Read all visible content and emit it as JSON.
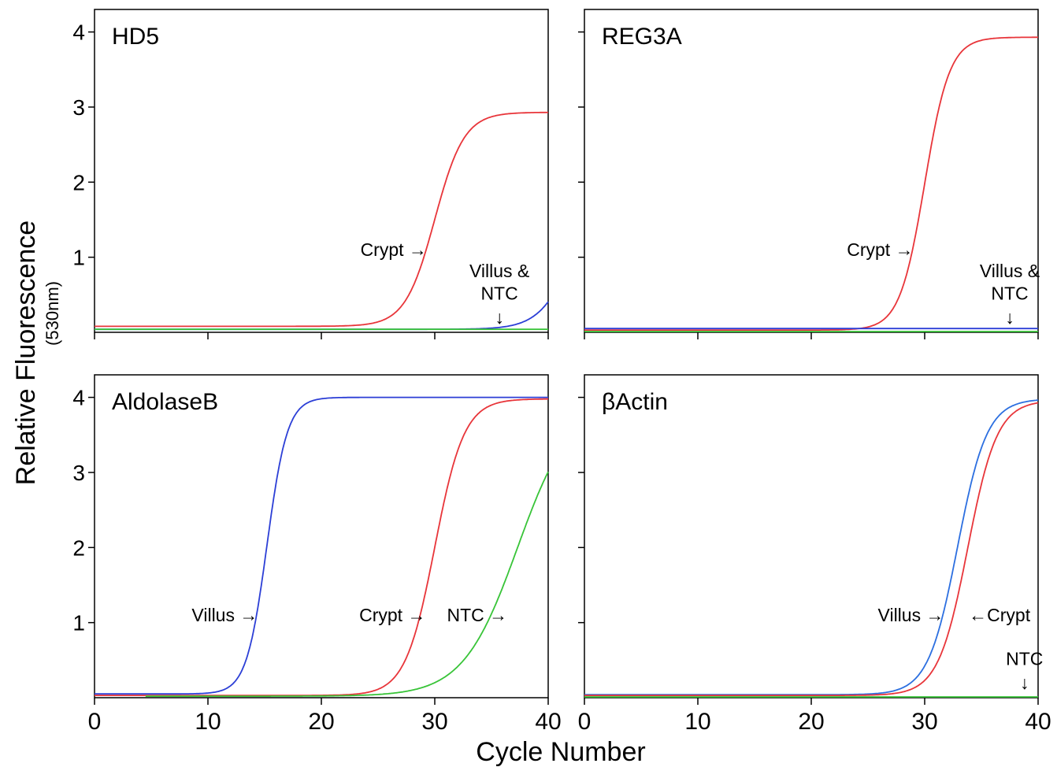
{
  "figure": {
    "ylabel": "Relative Fluorescence",
    "ylabel_sub": "(530nm)",
    "xlabel": "Cycle Number"
  },
  "chart_data": [
    {
      "type": "line",
      "title": "HD5",
      "xlim": [
        0,
        40
      ],
      "ylim": [
        0,
        4.3
      ],
      "yticks": [
        1,
        2,
        3,
        4
      ],
      "xticks": [
        0,
        10,
        20,
        30,
        40
      ],
      "show_ytick_labels": true,
      "show_xtick_labels": false,
      "series": [
        {
          "name": "Crypt",
          "color": "#e8353a",
          "baseline": 0.08,
          "plateau": 2.93,
          "midpoint": 30,
          "steepness": 1.3,
          "start": 0
        },
        {
          "name": "Villus",
          "color": "#2c3fd6",
          "baseline": 0.04,
          "plateau": 2.0,
          "midpoint": 42.2,
          "steepness": 1.5,
          "start": 0
        },
        {
          "name": "NTC",
          "color": "#38c438",
          "baseline": 0.04,
          "plateau": 0.04,
          "midpoint": 99,
          "steepness": 1,
          "start": 0
        }
      ],
      "annotations": [
        {
          "text": "Crypt",
          "arrow": "→",
          "x": 29.3,
          "y": 1.1,
          "anchor": "end"
        },
        {
          "text": "Villus &",
          "x": 35.7,
          "y": 0.82,
          "anchor": "middle"
        },
        {
          "text": "NTC",
          "x": 35.7,
          "y": 0.52,
          "anchor": "middle"
        },
        {
          "text": "↓",
          "x": 35.7,
          "y": 0.2,
          "anchor": "middle"
        }
      ]
    },
    {
      "type": "line",
      "title": "REG3A",
      "xlim": [
        0,
        40
      ],
      "ylim": [
        0,
        4.3
      ],
      "yticks": [
        1,
        2,
        3,
        4
      ],
      "xticks": [
        0,
        10,
        20,
        30,
        40
      ],
      "show_ytick_labels": false,
      "show_xtick_labels": false,
      "series": [
        {
          "name": "Crypt",
          "color": "#e8353a",
          "baseline": 0.03,
          "plateau": 3.93,
          "midpoint": 30,
          "steepness": 1.1,
          "start": 0
        },
        {
          "name": "Villus",
          "color": "#2c3fd6",
          "baseline": 0.05,
          "plateau": 0.05,
          "midpoint": 99,
          "steepness": 1,
          "start": 0
        },
        {
          "name": "NTC",
          "color": "#38c438",
          "baseline": 0.01,
          "plateau": 0.01,
          "midpoint": 99,
          "steepness": 1,
          "start": 0
        }
      ],
      "annotations": [
        {
          "text": "Crypt",
          "arrow": "→",
          "x": 29.0,
          "y": 1.1,
          "anchor": "end"
        },
        {
          "text": "Villus &",
          "x": 37.5,
          "y": 0.82,
          "anchor": "middle"
        },
        {
          "text": "NTC",
          "x": 37.5,
          "y": 0.52,
          "anchor": "middle"
        },
        {
          "text": "↓",
          "x": 37.5,
          "y": 0.2,
          "anchor": "middle"
        }
      ]
    },
    {
      "type": "line",
      "title": "AldolaseB",
      "xlim": [
        0,
        40
      ],
      "ylim": [
        0,
        4.3
      ],
      "yticks": [
        1,
        2,
        3,
        4
      ],
      "xticks": [
        0,
        10,
        20,
        30,
        40
      ],
      "show_ytick_labels": true,
      "show_xtick_labels": true,
      "series": [
        {
          "name": "Villus",
          "color": "#2c3fd6",
          "baseline": 0.05,
          "plateau": 4.0,
          "midpoint": 15.2,
          "steepness": 0.9,
          "start": 0
        },
        {
          "name": "Crypt",
          "color": "#e8353a",
          "baseline": 0.03,
          "plateau": 3.98,
          "midpoint": 30,
          "steepness": 1.3,
          "start": 0
        },
        {
          "name": "NTC",
          "color": "#38c438",
          "baseline": 0.02,
          "plateau": 3.98,
          "midpoint": 37.3,
          "steepness": 2.4,
          "start": 4.5
        }
      ],
      "annotations": [
        {
          "text": "Villus",
          "arrow": "→",
          "x": 14.4,
          "y": 1.1,
          "anchor": "end"
        },
        {
          "text": "Crypt",
          "arrow": "→",
          "x": 29.2,
          "y": 1.1,
          "anchor": "end"
        },
        {
          "text": "NTC",
          "arrow": "→",
          "x": 36.4,
          "y": 1.1,
          "anchor": "end"
        }
      ]
    },
    {
      "type": "line",
      "title": "βActin",
      "xlim": [
        0,
        40
      ],
      "ylim": [
        0,
        4.3
      ],
      "yticks": [
        1,
        2,
        3,
        4
      ],
      "xticks": [
        0,
        10,
        20,
        30,
        40
      ],
      "show_ytick_labels": false,
      "show_xtick_labels": true,
      "series": [
        {
          "name": "Villus",
          "color": "#2c6fe0",
          "baseline": 0.04,
          "plateau": 3.98,
          "midpoint": 32.9,
          "steepness": 1.3,
          "start": 0
        },
        {
          "name": "Crypt",
          "color": "#e8353a",
          "baseline": 0.03,
          "plateau": 3.96,
          "midpoint": 33.8,
          "steepness": 1.3,
          "start": 0
        },
        {
          "name": "NTC",
          "color": "#38c438",
          "baseline": 0.01,
          "plateau": 0.01,
          "midpoint": 99,
          "steepness": 1,
          "start": 0
        }
      ],
      "annotations": [
        {
          "text": "Villus",
          "arrow": "→",
          "x": 31.7,
          "y": 1.1,
          "anchor": "end"
        },
        {
          "text": "Crypt",
          "arrow": "←",
          "arrow_side": "start",
          "x": 33.9,
          "y": 1.1,
          "anchor": "start"
        },
        {
          "text": "NTC",
          "x": 38.8,
          "y": 0.52,
          "anchor": "middle"
        },
        {
          "text": "↓",
          "x": 38.8,
          "y": 0.2,
          "anchor": "middle"
        }
      ]
    }
  ]
}
